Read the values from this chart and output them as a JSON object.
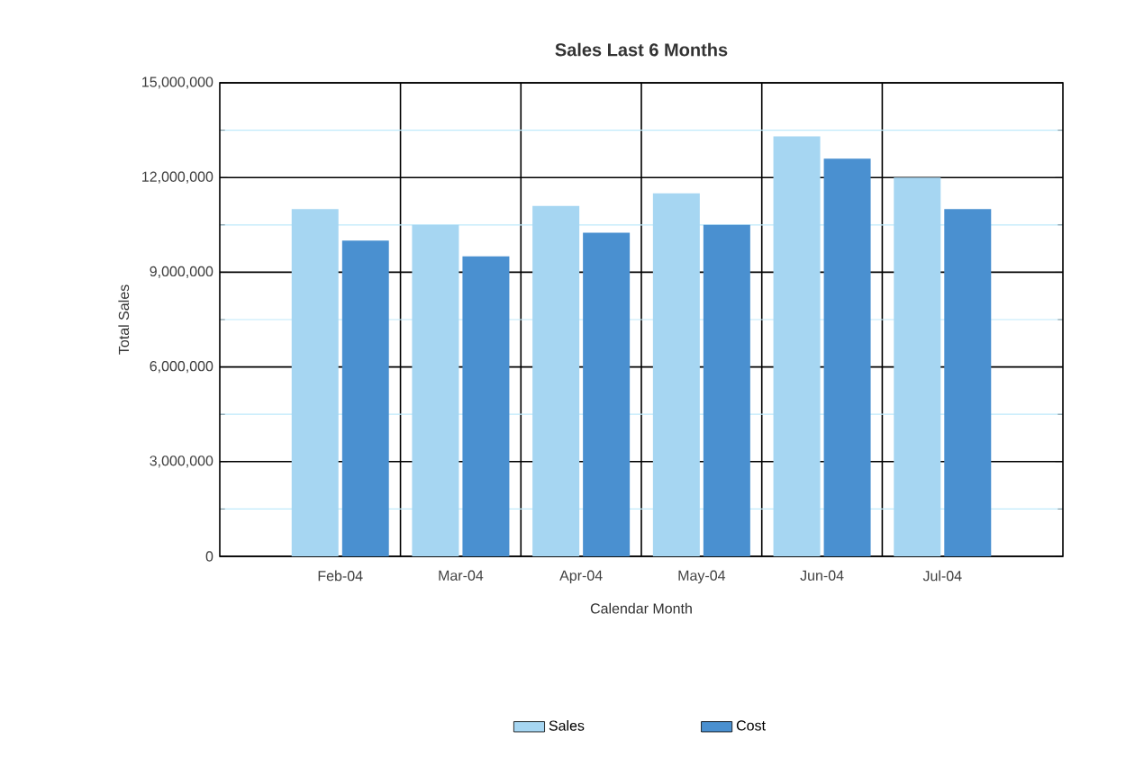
{
  "chart_data": {
    "type": "bar",
    "title": "Sales Last 6 Months",
    "xlabel": "Calendar Month",
    "ylabel": "Total Sales",
    "categories": [
      "Feb-04",
      "Mar-04",
      "Apr-04",
      "May-04",
      "Jun-04",
      "Jul-04"
    ],
    "series": [
      {
        "name": "Sales",
        "color": "#a6d6f2",
        "values": [
          11000000,
          10500000,
          11100000,
          11500000,
          13300000,
          12000000
        ]
      },
      {
        "name": "Cost",
        "color": "#4a90d0",
        "values": [
          10000000,
          9500000,
          10250000,
          10500000,
          12600000,
          11000000
        ]
      }
    ],
    "ylim": [
      0,
      15000000
    ],
    "yticks": [
      {
        "value": 0,
        "label": "0"
      },
      {
        "value": 1500000,
        "label": null
      },
      {
        "value": 3000000,
        "label": "3,000,000"
      },
      {
        "value": 4500000,
        "label": null
      },
      {
        "value": 6000000,
        "label": "6,000,000"
      },
      {
        "value": 7500000,
        "label": null
      },
      {
        "value": 9000000,
        "label": "9,000,000"
      },
      {
        "value": 10500000,
        "label": null
      },
      {
        "value": 12000000,
        "label": "12,000,000"
      },
      {
        "value": 13500000,
        "label": null
      },
      {
        "value": 15000000,
        "label": "15,000,000"
      }
    ],
    "grid": true,
    "legend": "bottom"
  }
}
